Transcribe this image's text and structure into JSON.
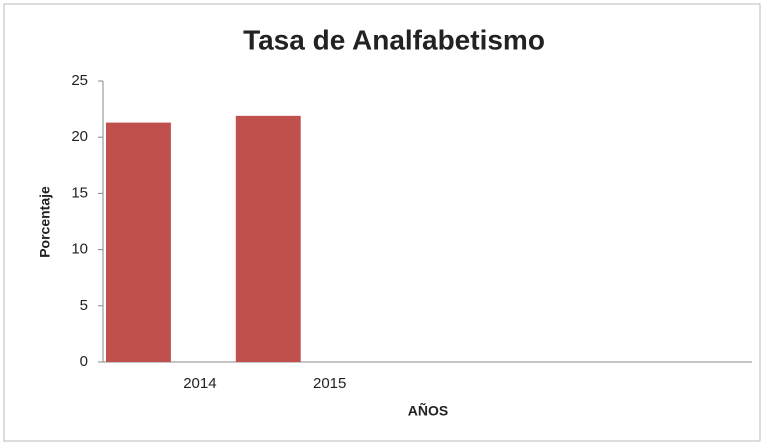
{
  "chart_data": {
    "type": "bar",
    "title": "Tasa de Analfabetismo",
    "x_label": "AÑOS",
    "y_label": "Porcentaje",
    "categories": [
      "2014",
      "2015",
      null,
      null,
      null
    ],
    "values": [
      21.3,
      21.9,
      null,
      null,
      null
    ],
    "color": "#c0504d",
    "ylim": [
      0,
      25
    ],
    "yticks": [
      0,
      5,
      10,
      15,
      20,
      25
    ],
    "grid": false
  }
}
